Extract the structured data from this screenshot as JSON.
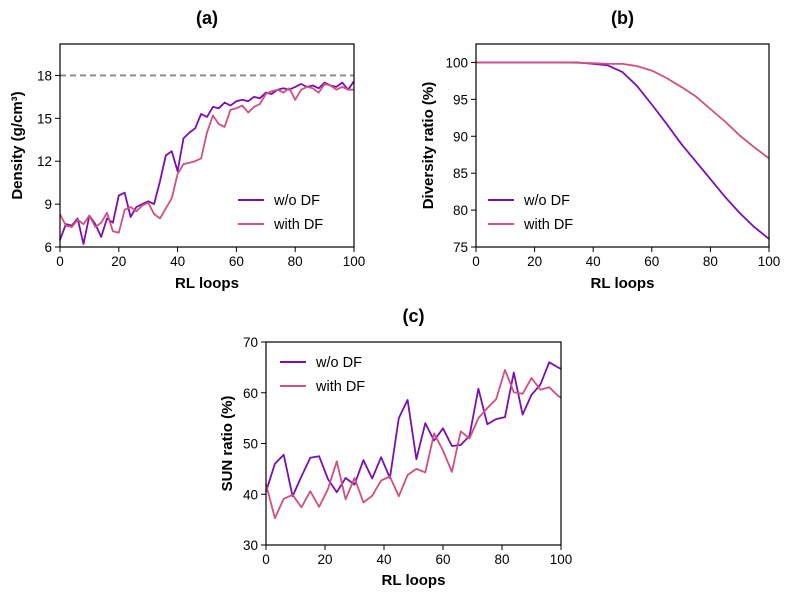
{
  "colors": {
    "wo_df": "#7a0fb0",
    "with_df": "#d14f82",
    "reference_line": "#888888"
  },
  "chart_data": [
    {
      "id": "a",
      "type": "line",
      "title": "(a)",
      "xlabel": "RL loops",
      "ylabel": "Density (g/cm³)",
      "xlim": [
        0,
        100
      ],
      "ylim": [
        6,
        20.2
      ],
      "xticks": [
        0,
        20,
        40,
        60,
        80,
        100
      ],
      "yticks": [
        6,
        9,
        12,
        15,
        18
      ],
      "xtick_labels": [
        "0",
        "20",
        "40",
        "60",
        "80",
        "100"
      ],
      "ytick_labels": [
        "6",
        "9",
        "12",
        "15",
        "18"
      ],
      "reference_line": {
        "y": 18,
        "style": "dashed"
      },
      "legend": {
        "position": "lower-right",
        "labels": [
          "w/o DF",
          "with DF"
        ]
      },
      "series": [
        {
          "name": "w/o DF",
          "color_key": "wo_df",
          "x": [
            0,
            2,
            4,
            6,
            8,
            10,
            12,
            14,
            16,
            18,
            20,
            22,
            24,
            26,
            28,
            30,
            32,
            34,
            36,
            38,
            40,
            42,
            44,
            46,
            48,
            50,
            52,
            54,
            56,
            58,
            60,
            62,
            64,
            66,
            68,
            70,
            72,
            74,
            76,
            78,
            80,
            82,
            84,
            86,
            88,
            90,
            92,
            94,
            96,
            98,
            100
          ],
          "y": [
            6.5,
            7.6,
            7.5,
            8.0,
            6.2,
            8.2,
            7.6,
            6.7,
            8.0,
            7.7,
            9.6,
            9.8,
            8.1,
            8.8,
            9.0,
            9.2,
            9.0,
            10.6,
            12.4,
            12.7,
            11.3,
            13.6,
            14.0,
            14.3,
            15.3,
            15.1,
            15.8,
            15.7,
            16.1,
            15.9,
            16.2,
            16.3,
            16.2,
            16.5,
            16.4,
            16.8,
            16.7,
            17.0,
            17.1,
            17.0,
            17.2,
            17.4,
            17.2,
            17.3,
            17.1,
            17.5,
            17.3,
            17.2,
            17.5,
            17.0,
            17.6
          ]
        },
        {
          "name": "with DF",
          "color_key": "with_df",
          "x": [
            0,
            2,
            4,
            6,
            8,
            10,
            12,
            14,
            16,
            18,
            20,
            22,
            24,
            26,
            28,
            30,
            32,
            34,
            36,
            38,
            40,
            42,
            44,
            46,
            48,
            50,
            52,
            54,
            56,
            58,
            60,
            62,
            64,
            66,
            68,
            70,
            72,
            74,
            76,
            78,
            80,
            82,
            84,
            86,
            88,
            90,
            92,
            94,
            96,
            98,
            100
          ],
          "y": [
            8.3,
            7.5,
            7.4,
            7.9,
            7.6,
            8.2,
            7.4,
            7.7,
            8.4,
            7.1,
            7.0,
            8.6,
            8.8,
            8.5,
            8.9,
            9.1,
            8.3,
            8.0,
            8.7,
            9.4,
            11.1,
            11.8,
            11.9,
            12.0,
            12.2,
            14.0,
            15.2,
            14.6,
            14.4,
            15.6,
            15.7,
            15.9,
            15.4,
            15.8,
            16.0,
            16.7,
            16.9,
            17.0,
            16.8,
            17.1,
            16.3,
            17.0,
            17.2,
            17.1,
            16.8,
            17.4,
            17.3,
            17.0,
            17.2,
            17.0,
            17.0
          ]
        }
      ]
    },
    {
      "id": "b",
      "type": "line",
      "title": "(b)",
      "xlabel": "RL loops",
      "ylabel": "Diversity ratio (%)",
      "xlim": [
        0,
        100
      ],
      "ylim": [
        75,
        102.5
      ],
      "xticks": [
        0,
        20,
        40,
        60,
        80,
        100
      ],
      "yticks": [
        75,
        80,
        85,
        90,
        95,
        100
      ],
      "xtick_labels": [
        "0",
        "20",
        "40",
        "60",
        "80",
        "100"
      ],
      "ytick_labels": [
        "75",
        "80",
        "85",
        "90",
        "95",
        "100"
      ],
      "legend": {
        "position": "lower-left",
        "labels": [
          "w/o DF",
          "with DF"
        ]
      },
      "series": [
        {
          "name": "w/o DF",
          "color_key": "wo_df",
          "x": [
            0,
            10,
            20,
            30,
            35,
            40,
            45,
            50,
            55,
            60,
            65,
            70,
            75,
            80,
            85,
            90,
            95,
            100
          ],
          "y": [
            100,
            100,
            100,
            100,
            100,
            99.8,
            99.6,
            98.7,
            96.8,
            94.3,
            91.7,
            89.0,
            86.6,
            84.2,
            81.8,
            79.6,
            77.7,
            76.1
          ]
        },
        {
          "name": "with DF",
          "color_key": "with_df",
          "x": [
            0,
            10,
            20,
            30,
            40,
            45,
            50,
            55,
            60,
            65,
            70,
            75,
            80,
            85,
            90,
            95,
            100
          ],
          "y": [
            100,
            100,
            100,
            100,
            99.9,
            99.8,
            99.8,
            99.5,
            98.9,
            97.9,
            96.7,
            95.4,
            93.7,
            92.0,
            90.1,
            88.5,
            87.0
          ]
        }
      ]
    },
    {
      "id": "c",
      "type": "line",
      "title": "(c)",
      "xlabel": "RL loops",
      "ylabel": "SUN ratio (%)",
      "xlim": [
        0,
        100
      ],
      "ylim": [
        30,
        70
      ],
      "xticks": [
        0,
        20,
        40,
        60,
        80,
        100
      ],
      "yticks": [
        30,
        40,
        50,
        60,
        70
      ],
      "xtick_labels": [
        "0",
        "20",
        "40",
        "60",
        "80",
        "100"
      ],
      "ytick_labels": [
        "30",
        "40",
        "50",
        "60",
        "70"
      ],
      "legend": {
        "position": "upper-left",
        "labels": [
          "w/o DF",
          "with DF"
        ]
      },
      "series": [
        {
          "name": "w/o DF",
          "color_key": "wo_df",
          "x": [
            0,
            3,
            6,
            9,
            12,
            15,
            18,
            21,
            24,
            27,
            30,
            33,
            36,
            39,
            42,
            45,
            48,
            51,
            54,
            57,
            60,
            63,
            66,
            69,
            72,
            75,
            78,
            81,
            84,
            87,
            90,
            93,
            96,
            99,
            100
          ],
          "y": [
            40.5,
            46.0,
            47.8,
            39.6,
            43.5,
            47.2,
            47.5,
            43.0,
            40.4,
            43.2,
            41.9,
            46.7,
            43.1,
            47.3,
            43.2,
            55.0,
            58.6,
            46.9,
            54.0,
            50.6,
            53.0,
            49.5,
            49.7,
            51.5,
            60.8,
            53.8,
            54.8,
            55.2,
            64.0,
            55.7,
            59.6,
            61.6,
            66.0,
            65.0,
            64.7
          ]
        },
        {
          "name": "with DF",
          "color_key": "with_df",
          "x": [
            0,
            3,
            6,
            9,
            12,
            15,
            18,
            21,
            24,
            27,
            30,
            33,
            36,
            39,
            42,
            45,
            48,
            51,
            54,
            57,
            60,
            63,
            66,
            69,
            72,
            75,
            78,
            81,
            84,
            87,
            90,
            93,
            96,
            99,
            100
          ],
          "y": [
            42.0,
            35.3,
            39.1,
            39.9,
            37.4,
            40.6,
            37.5,
            41.0,
            46.5,
            39.0,
            43.2,
            38.4,
            39.7,
            42.7,
            43.5,
            39.6,
            43.8,
            45.0,
            44.3,
            52.0,
            48.6,
            44.4,
            52.4,
            51.0,
            55.0,
            57.0,
            58.7,
            64.5,
            60.1,
            59.8,
            62.9,
            60.6,
            61.1,
            59.4,
            59.0
          ]
        }
      ]
    }
  ]
}
